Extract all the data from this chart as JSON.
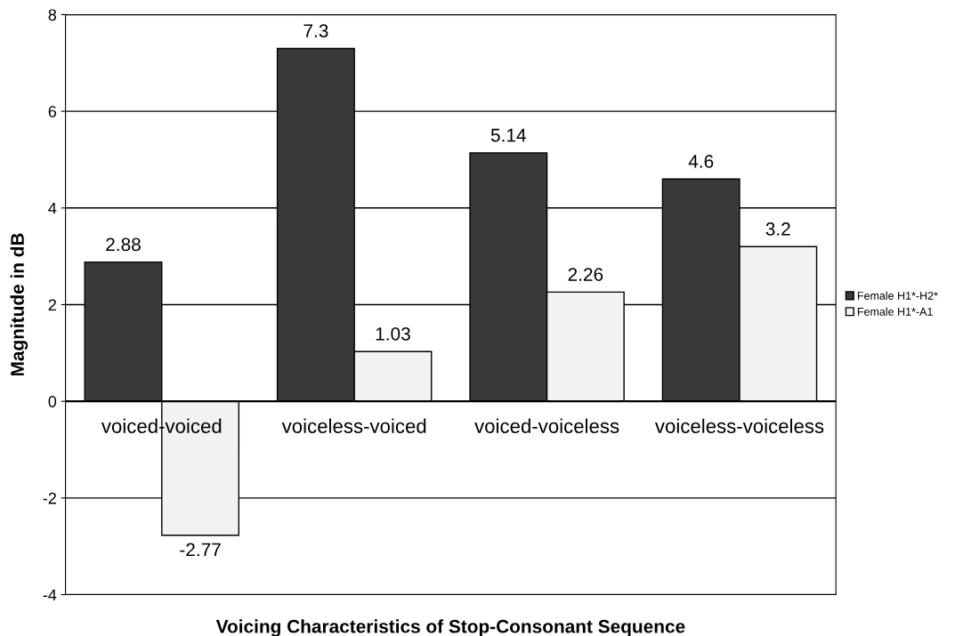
{
  "chart_data": {
    "type": "bar",
    "xlabel": "Voicing Characteristics of Stop-Consonant Sequence",
    "ylabel": "Magnitude in dB",
    "categories": [
      "voiced-voiced",
      "voiceless-voiced",
      "voiced-voiceless",
      "voiceless-voiceless"
    ],
    "series": [
      {
        "name": "Female H1*-H2*",
        "color": "#3a3a3a",
        "values": [
          2.88,
          7.3,
          5.14,
          4.6
        ]
      },
      {
        "name": "Female H1*-A1",
        "color": "#f2f2f2",
        "values": [
          -2.77,
          1.03,
          2.26,
          3.2
        ]
      }
    ],
    "ylim": [
      -4,
      8
    ],
    "yticks": [
      -4,
      -2,
      0,
      2,
      4,
      6,
      8
    ],
    "grid": "y",
    "legend": "right",
    "data_labels": true
  }
}
